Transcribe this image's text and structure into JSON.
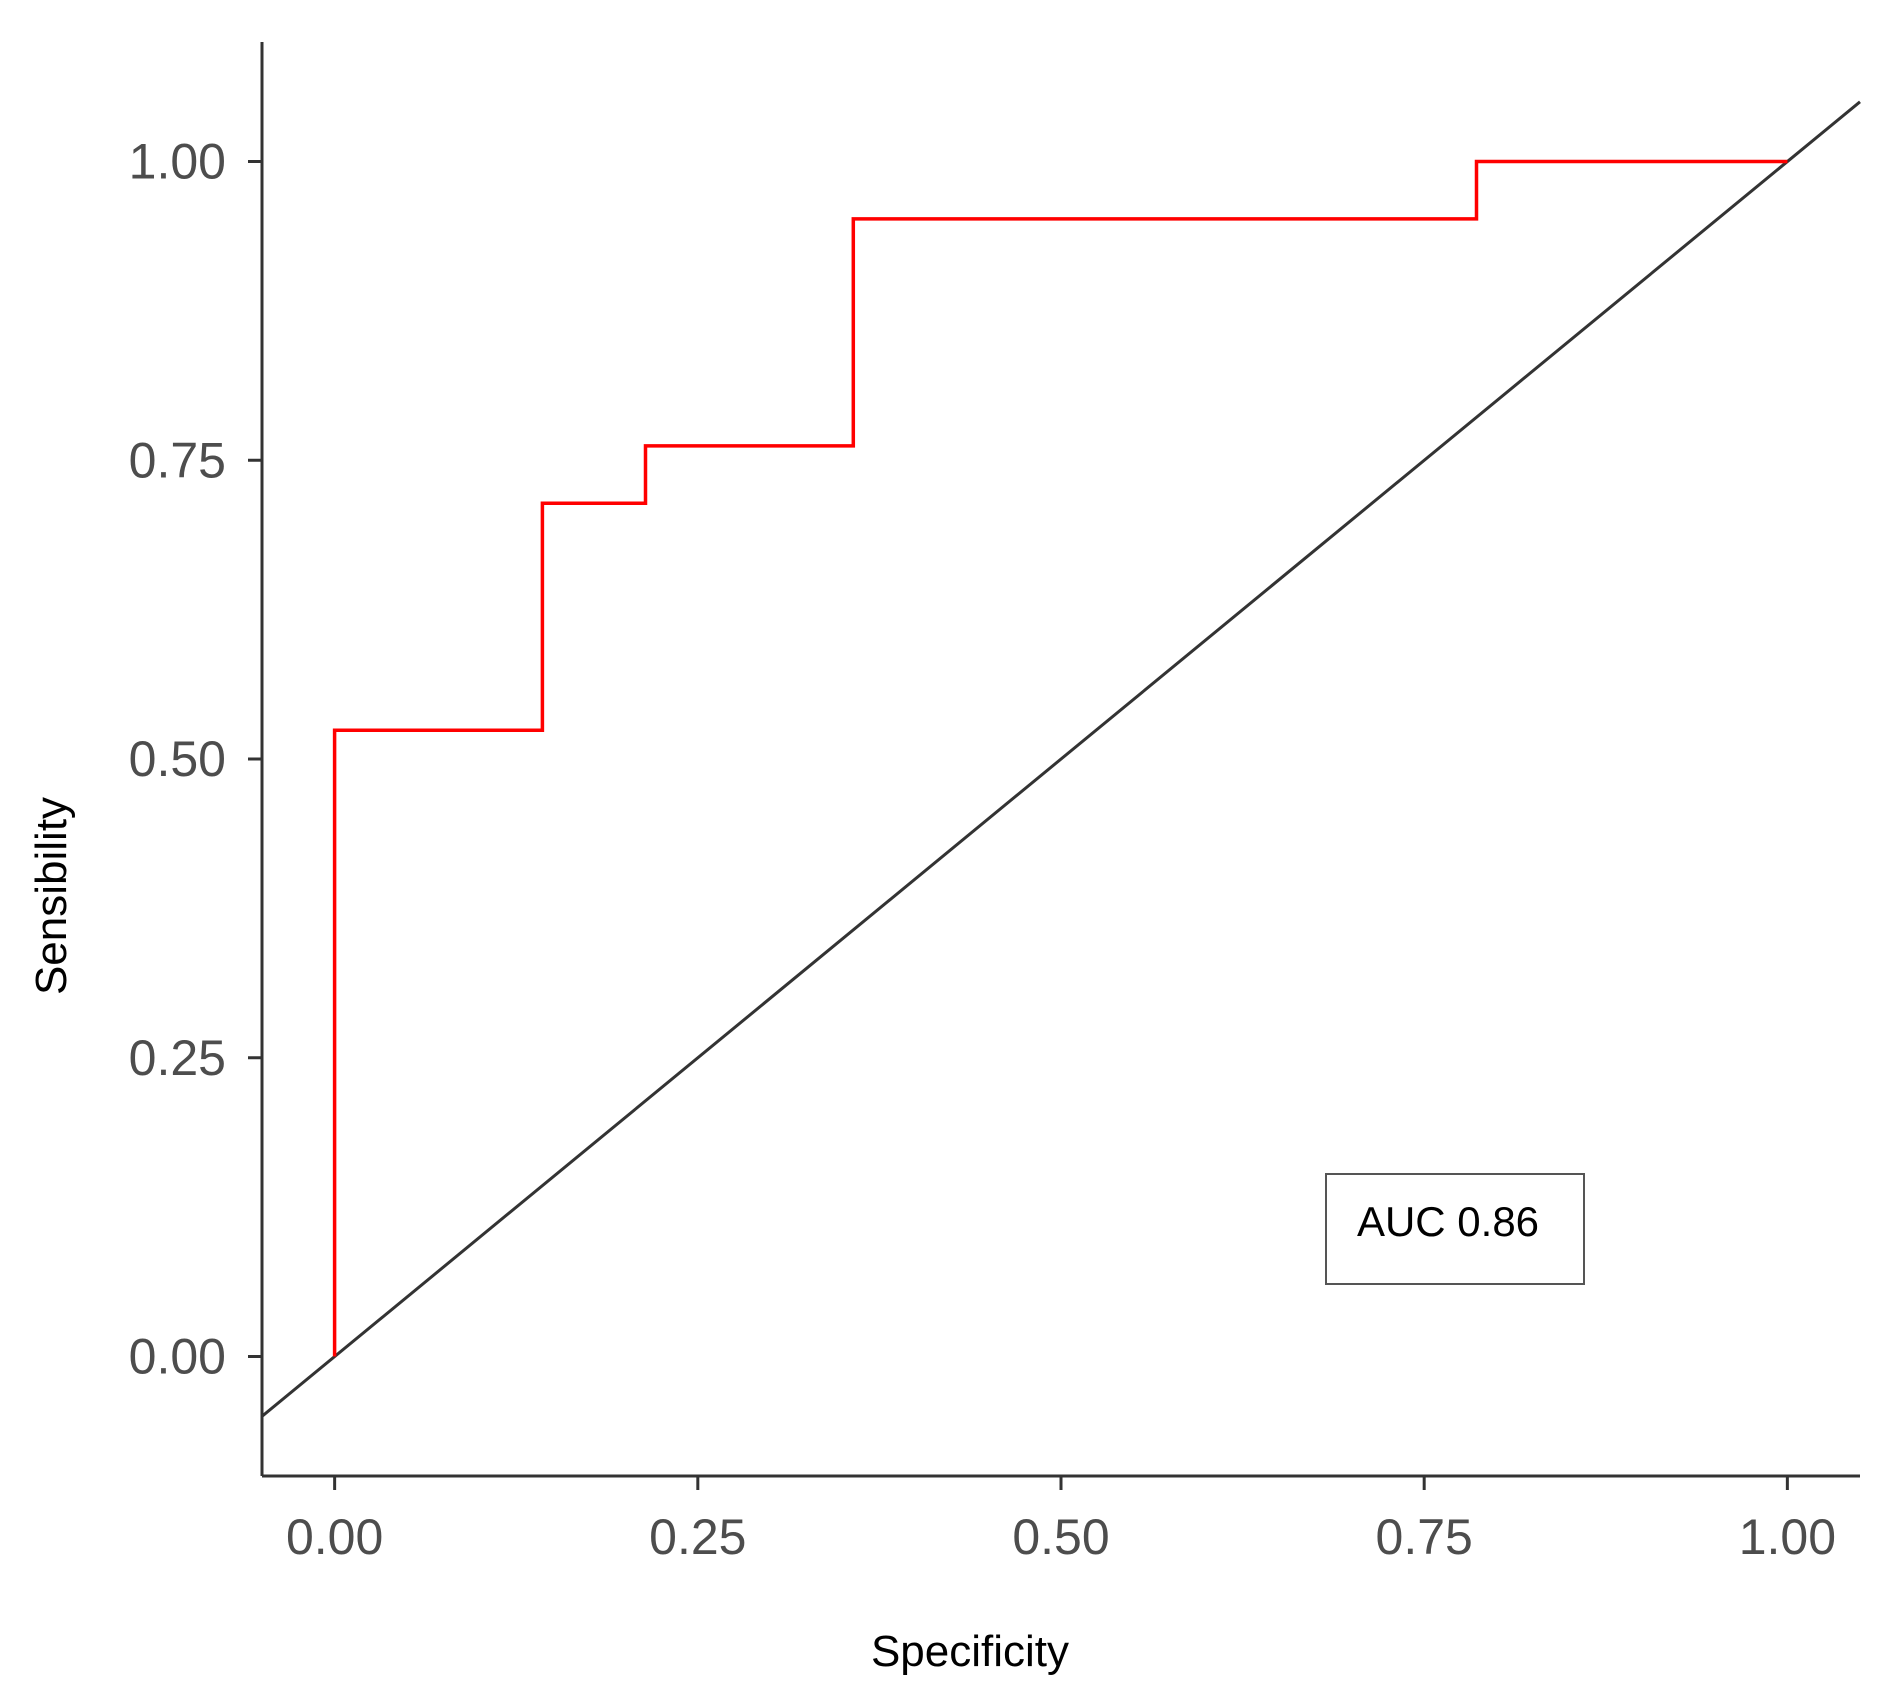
{
  "chart_data": {
    "type": "line",
    "xlabel": "Specificity",
    "ylabel": "Sensibility",
    "xlim": [
      -0.05,
      1.05
    ],
    "ylim": [
      -0.1,
      1.1
    ],
    "x_ticks": [
      "0.00",
      "0.25",
      "0.50",
      "0.75",
      "1.00"
    ],
    "y_ticks": [
      "0.00",
      "0.25",
      "0.50",
      "0.75",
      "1.00"
    ],
    "grid": false,
    "series": [
      {
        "color": "#ff0000",
        "step": true,
        "x": [
          0.0,
          0.0,
          0.143,
          0.143,
          0.214,
          0.214,
          0.357,
          0.357,
          0.786,
          0.786,
          1.0
        ],
        "y": [
          0.0,
          0.524,
          0.524,
          0.714,
          0.714,
          0.762,
          0.762,
          0.952,
          0.952,
          1.0,
          1.0
        ]
      },
      {
        "color": "#333333",
        "x": [
          -0.05,
          1.05
        ],
        "y": [
          -0.05,
          1.05
        ]
      }
    ],
    "annotation": {
      "text": "AUC 0.86",
      "position": "bottom-right"
    }
  }
}
